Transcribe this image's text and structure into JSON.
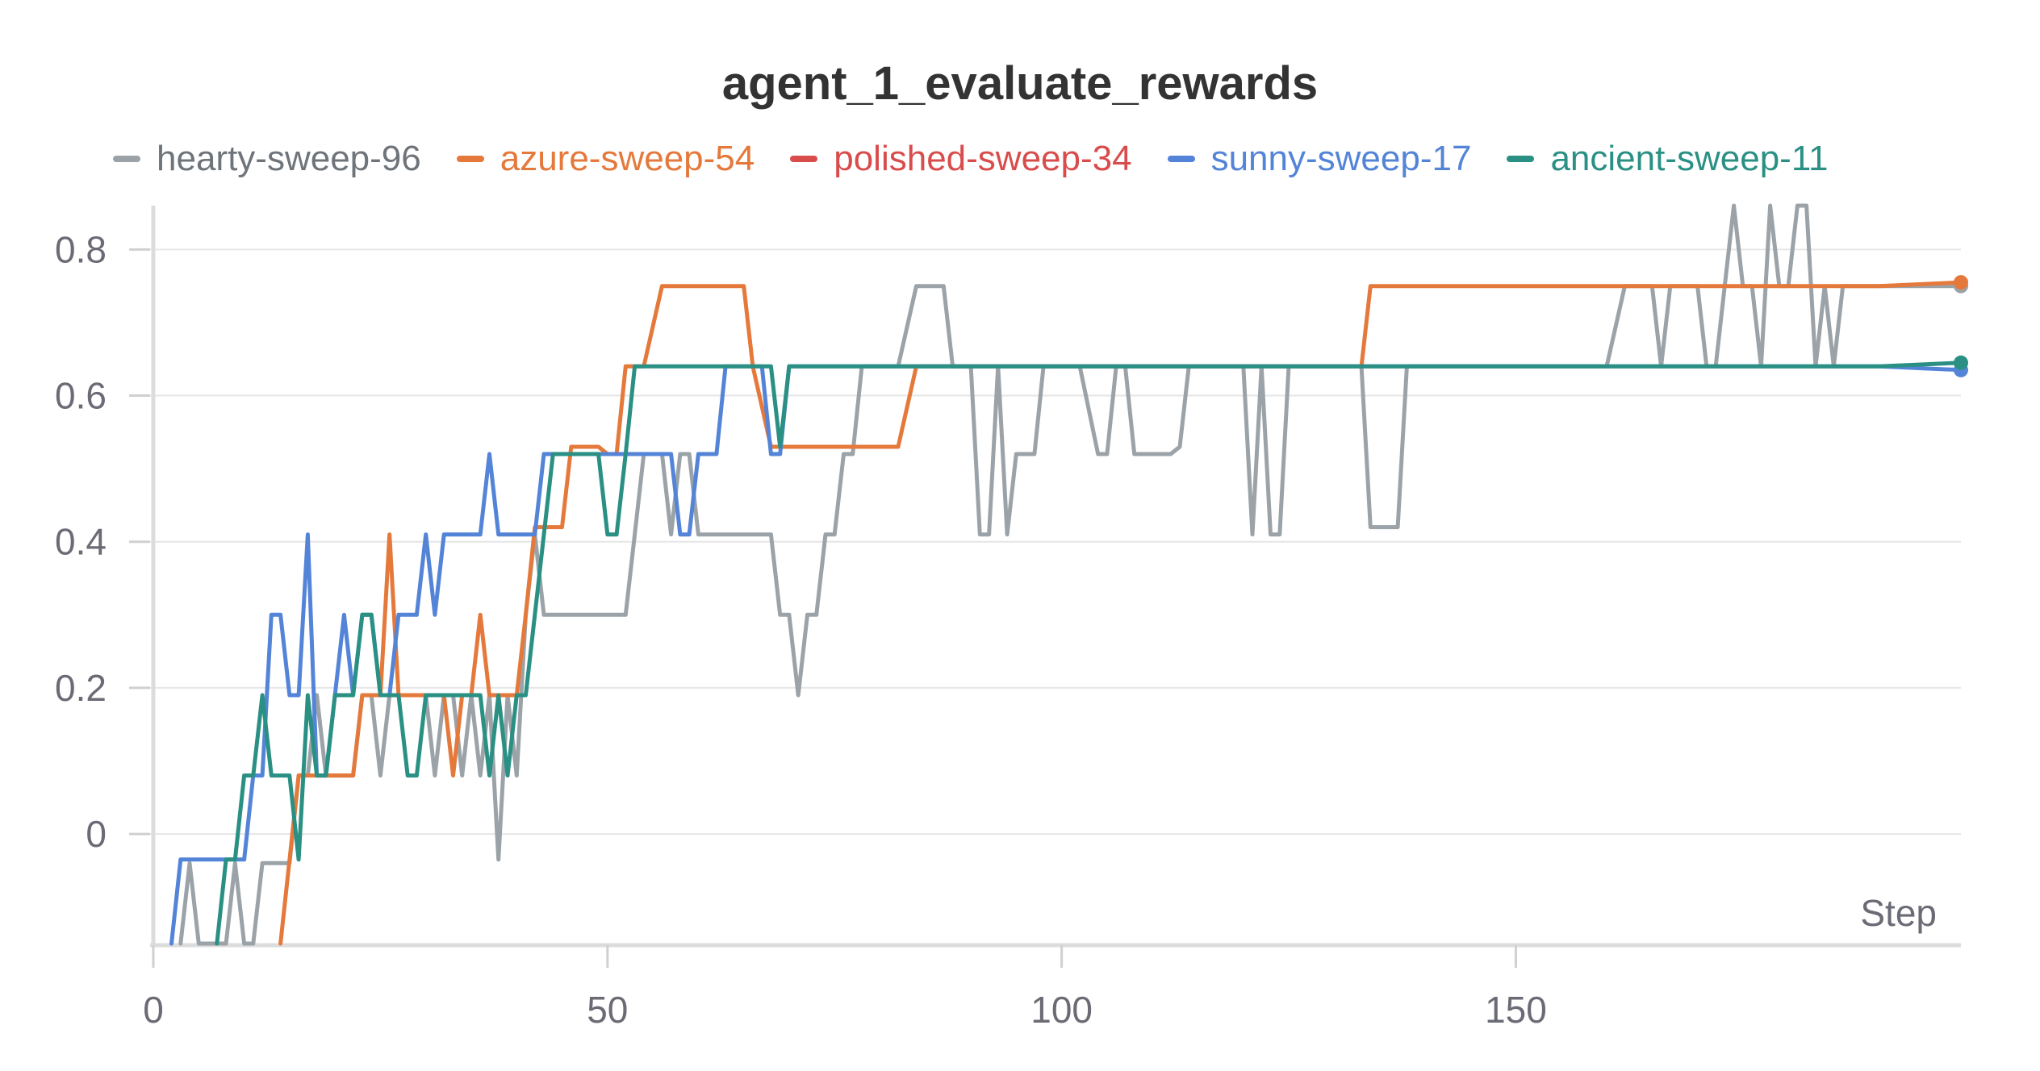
{
  "chart_data": {
    "type": "line",
    "title": "agent_1_evaluate_rewards",
    "xlabel": "Step",
    "ylabel": "",
    "xlim": [
      0,
      199
    ],
    "ylim": [
      -0.15,
      0.86
    ],
    "x_ticks": [
      0,
      50,
      100,
      150
    ],
    "y_ticks": [
      0,
      0.2,
      0.4,
      0.6,
      0.8
    ],
    "y_tick_labels": [
      "0",
      "0.2",
      "0.4",
      "0.6",
      "0.8"
    ],
    "grid": true,
    "legend_position": "top",
    "series": [
      {
        "name": "hearty-sweep-96",
        "color": "#9ba3a8",
        "points": [
          [
            3,
            -0.15
          ],
          [
            4,
            -0.04
          ],
          [
            5,
            -0.15
          ],
          [
            8,
            -0.15
          ],
          [
            9,
            -0.04
          ],
          [
            10,
            -0.15
          ],
          [
            11,
            -0.15
          ],
          [
            12,
            -0.04
          ],
          [
            15,
            -0.04
          ],
          [
            16,
            0.08
          ],
          [
            17,
            0.08
          ],
          [
            18,
            0.19
          ],
          [
            19,
            0.08
          ],
          [
            22,
            0.08
          ],
          [
            23,
            0.19
          ],
          [
            24,
            0.19
          ],
          [
            25,
            0.08
          ],
          [
            26,
            0.19
          ],
          [
            27,
            0.19
          ],
          [
            28,
            0.19
          ],
          [
            29,
            0.19
          ],
          [
            30,
            0.19
          ],
          [
            31,
            0.08
          ],
          [
            32,
            0.19
          ],
          [
            33,
            0.19
          ],
          [
            34,
            0.08
          ],
          [
            35,
            0.19
          ],
          [
            36,
            0.08
          ],
          [
            37,
            0.19
          ],
          [
            38,
            -0.035
          ],
          [
            39,
            0.19
          ],
          [
            40,
            0.08
          ],
          [
            41,
            0.3
          ],
          [
            42,
            0.41
          ],
          [
            43,
            0.3
          ],
          [
            44,
            0.3
          ],
          [
            45,
            0.3
          ],
          [
            50,
            0.3
          ],
          [
            52,
            0.3
          ],
          [
            53,
            0.41
          ],
          [
            54,
            0.52
          ],
          [
            56,
            0.52
          ],
          [
            57,
            0.41
          ],
          [
            58,
            0.52
          ],
          [
            59,
            0.52
          ],
          [
            60,
            0.41
          ],
          [
            61,
            0.41
          ],
          [
            64,
            0.41
          ],
          [
            68,
            0.41
          ],
          [
            69,
            0.3
          ],
          [
            70,
            0.3
          ],
          [
            71,
            0.19
          ],
          [
            72,
            0.3
          ],
          [
            73,
            0.3
          ],
          [
            74,
            0.41
          ],
          [
            75,
            0.41
          ],
          [
            76,
            0.52
          ],
          [
            77,
            0.52
          ],
          [
            78,
            0.64
          ],
          [
            80,
            0.64
          ],
          [
            82,
            0.64
          ],
          [
            84,
            0.75
          ],
          [
            87,
            0.75
          ],
          [
            88,
            0.64
          ],
          [
            90,
            0.64
          ],
          [
            91,
            0.41
          ],
          [
            92,
            0.41
          ],
          [
            93,
            0.64
          ],
          [
            94,
            0.41
          ],
          [
            95,
            0.52
          ],
          [
            96,
            0.52
          ],
          [
            97,
            0.52
          ],
          [
            98,
            0.64
          ],
          [
            102,
            0.64
          ],
          [
            104,
            0.52
          ],
          [
            105,
            0.52
          ],
          [
            106,
            0.64
          ],
          [
            107,
            0.64
          ],
          [
            108,
            0.52
          ],
          [
            109,
            0.52
          ],
          [
            112,
            0.52
          ],
          [
            113,
            0.53
          ],
          [
            114,
            0.64
          ],
          [
            115,
            0.64
          ],
          [
            120,
            0.64
          ],
          [
            121,
            0.41
          ],
          [
            122,
            0.64
          ],
          [
            123,
            0.41
          ],
          [
            124,
            0.41
          ],
          [
            125,
            0.64
          ],
          [
            127,
            0.64
          ],
          [
            130,
            0.64
          ],
          [
            133,
            0.64
          ],
          [
            134,
            0.42
          ],
          [
            135,
            0.42
          ],
          [
            137,
            0.42
          ],
          [
            138,
            0.64
          ],
          [
            140,
            0.64
          ],
          [
            150,
            0.64
          ],
          [
            160,
            0.64
          ],
          [
            162,
            0.75
          ],
          [
            165,
            0.75
          ],
          [
            166,
            0.64
          ],
          [
            167,
            0.75
          ],
          [
            170,
            0.75
          ],
          [
            171,
            0.64
          ],
          [
            172,
            0.64
          ],
          [
            173,
            0.75
          ],
          [
            174,
            0.86
          ],
          [
            175,
            0.75
          ],
          [
            176,
            0.75
          ],
          [
            177,
            0.64
          ],
          [
            178,
            0.86
          ],
          [
            179,
            0.75
          ],
          [
            180,
            0.75
          ],
          [
            181,
            0.86
          ],
          [
            182,
            0.86
          ],
          [
            183,
            0.64
          ],
          [
            184,
            0.75
          ],
          [
            185,
            0.64
          ],
          [
            186,
            0.75
          ],
          [
            190,
            0.75
          ],
          [
            199,
            0.75
          ]
        ]
      },
      {
        "name": "azure-sweep-54",
        "color": "#e5793b",
        "points": [
          [
            14,
            -0.15
          ],
          [
            16,
            0.08
          ],
          [
            17,
            0.08
          ],
          [
            20,
            0.08
          ],
          [
            22,
            0.08
          ],
          [
            23,
            0.19
          ],
          [
            24,
            0.19
          ],
          [
            25,
            0.19
          ],
          [
            26,
            0.41
          ],
          [
            27,
            0.19
          ],
          [
            30,
            0.19
          ],
          [
            32,
            0.19
          ],
          [
            33,
            0.08
          ],
          [
            34,
            0.19
          ],
          [
            35,
            0.19
          ],
          [
            36,
            0.3
          ],
          [
            37,
            0.19
          ],
          [
            38,
            0.19
          ],
          [
            40,
            0.19
          ],
          [
            41,
            0.3
          ],
          [
            42,
            0.42
          ],
          [
            45,
            0.42
          ],
          [
            46,
            0.53
          ],
          [
            49,
            0.53
          ],
          [
            50,
            0.52
          ],
          [
            51,
            0.52
          ],
          [
            52,
            0.64
          ],
          [
            54,
            0.64
          ],
          [
            56,
            0.75
          ],
          [
            60,
            0.75
          ],
          [
            65,
            0.75
          ],
          [
            66,
            0.64
          ],
          [
            68,
            0.53
          ],
          [
            75,
            0.53
          ],
          [
            82,
            0.53
          ],
          [
            84,
            0.64
          ],
          [
            85,
            0.64
          ],
          [
            90,
            0.64
          ],
          [
            100,
            0.64
          ],
          [
            110,
            0.64
          ],
          [
            120,
            0.64
          ],
          [
            130,
            0.64
          ],
          [
            133,
            0.64
          ],
          [
            134,
            0.75
          ],
          [
            140,
            0.75
          ],
          [
            150,
            0.75
          ],
          [
            160,
            0.75
          ],
          [
            170,
            0.75
          ],
          [
            180,
            0.75
          ],
          [
            190,
            0.75
          ],
          [
            199,
            0.755
          ]
        ]
      },
      {
        "name": "polished-sweep-34",
        "color": "#d94c4c",
        "points": []
      },
      {
        "name": "sunny-sweep-17",
        "color": "#5484d8",
        "points": [
          [
            2,
            -0.15
          ],
          [
            3,
            -0.035
          ],
          [
            4,
            -0.035
          ],
          [
            5,
            -0.035
          ],
          [
            8,
            -0.035
          ],
          [
            10,
            -0.035
          ],
          [
            11,
            0.08
          ],
          [
            12,
            0.08
          ],
          [
            13,
            0.3
          ],
          [
            14,
            0.3
          ],
          [
            15,
            0.19
          ],
          [
            16,
            0.19
          ],
          [
            17,
            0.41
          ],
          [
            18,
            0.08
          ],
          [
            19,
            0.08
          ],
          [
            20,
            0.19
          ],
          [
            21,
            0.3
          ],
          [
            22,
            0.19
          ],
          [
            23,
            0.3
          ],
          [
            24,
            0.3
          ],
          [
            25,
            0.19
          ],
          [
            26,
            0.19
          ],
          [
            27,
            0.3
          ],
          [
            28,
            0.3
          ],
          [
            29,
            0.3
          ],
          [
            30,
            0.41
          ],
          [
            31,
            0.3
          ],
          [
            32,
            0.41
          ],
          [
            33,
            0.41
          ],
          [
            34,
            0.41
          ],
          [
            35,
            0.41
          ],
          [
            36,
            0.41
          ],
          [
            37,
            0.52
          ],
          [
            38,
            0.41
          ],
          [
            39,
            0.41
          ],
          [
            40,
            0.41
          ],
          [
            41,
            0.41
          ],
          [
            42,
            0.41
          ],
          [
            43,
            0.52
          ],
          [
            44,
            0.52
          ],
          [
            45,
            0.52
          ],
          [
            50,
            0.52
          ],
          [
            55,
            0.52
          ],
          [
            57,
            0.52
          ],
          [
            58,
            0.41
          ],
          [
            59,
            0.41
          ],
          [
            60,
            0.52
          ],
          [
            61,
            0.52
          ],
          [
            62,
            0.52
          ],
          [
            63,
            0.64
          ],
          [
            64,
            0.64
          ],
          [
            65,
            0.64
          ],
          [
            66,
            0.64
          ],
          [
            67,
            0.64
          ],
          [
            68,
            0.52
          ],
          [
            69,
            0.52
          ],
          [
            70,
            0.64
          ],
          [
            72,
            0.64
          ],
          [
            80,
            0.64
          ],
          [
            90,
            0.64
          ],
          [
            100,
            0.64
          ],
          [
            110,
            0.64
          ],
          [
            120,
            0.64
          ],
          [
            130,
            0.64
          ],
          [
            140,
            0.64
          ],
          [
            150,
            0.64
          ],
          [
            160,
            0.64
          ],
          [
            170,
            0.64
          ],
          [
            180,
            0.64
          ],
          [
            190,
            0.64
          ],
          [
            199,
            0.635
          ]
        ]
      },
      {
        "name": "ancient-sweep-11",
        "color": "#2a9084",
        "points": [
          [
            7,
            -0.15
          ],
          [
            8,
            -0.035
          ],
          [
            9,
            -0.035
          ],
          [
            10,
            0.08
          ],
          [
            11,
            0.08
          ],
          [
            12,
            0.19
          ],
          [
            13,
            0.08
          ],
          [
            14,
            0.08
          ],
          [
            15,
            0.08
          ],
          [
            16,
            -0.035
          ],
          [
            17,
            0.19
          ],
          [
            18,
            0.08
          ],
          [
            19,
            0.08
          ],
          [
            20,
            0.19
          ],
          [
            22,
            0.19
          ],
          [
            23,
            0.3
          ],
          [
            24,
            0.3
          ],
          [
            25,
            0.19
          ],
          [
            26,
            0.19
          ],
          [
            27,
            0.19
          ],
          [
            28,
            0.08
          ],
          [
            29,
            0.08
          ],
          [
            30,
            0.19
          ],
          [
            33,
            0.19
          ],
          [
            35,
            0.19
          ],
          [
            36,
            0.19
          ],
          [
            37,
            0.08
          ],
          [
            38,
            0.19
          ],
          [
            39,
            0.08
          ],
          [
            40,
            0.19
          ],
          [
            41,
            0.19
          ],
          [
            42,
            0.3
          ],
          [
            43,
            0.41
          ],
          [
            44,
            0.52
          ],
          [
            46,
            0.52
          ],
          [
            49,
            0.52
          ],
          [
            50,
            0.41
          ],
          [
            51,
            0.41
          ],
          [
            52,
            0.52
          ],
          [
            53,
            0.64
          ],
          [
            54,
            0.64
          ],
          [
            60,
            0.64
          ],
          [
            65,
            0.64
          ],
          [
            68,
            0.64
          ],
          [
            69,
            0.53
          ],
          [
            70,
            0.64
          ],
          [
            75,
            0.64
          ],
          [
            80,
            0.64
          ],
          [
            90,
            0.64
          ],
          [
            100,
            0.64
          ],
          [
            110,
            0.64
          ],
          [
            120,
            0.64
          ],
          [
            130,
            0.64
          ],
          [
            140,
            0.64
          ],
          [
            150,
            0.64
          ],
          [
            160,
            0.64
          ],
          [
            170,
            0.64
          ],
          [
            180,
            0.64
          ],
          [
            190,
            0.64
          ],
          [
            199,
            0.645
          ]
        ]
      }
    ]
  }
}
